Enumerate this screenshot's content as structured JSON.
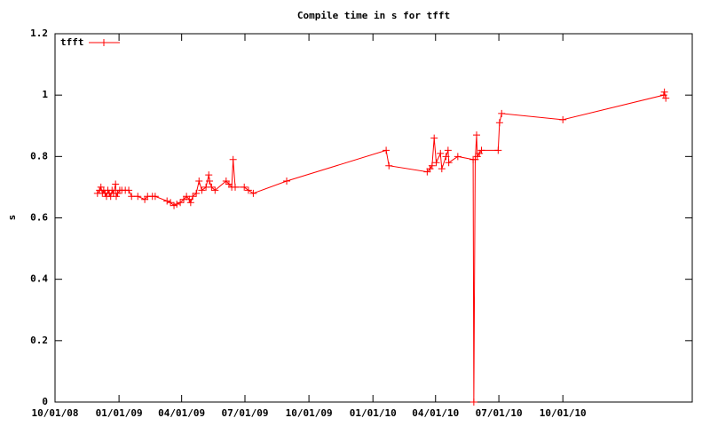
{
  "chart_data": {
    "type": "line",
    "title": "Compile time in s for tfft",
    "y_label": "s",
    "legend_position": "upper-left",
    "x": [
      "2008-12-01",
      "2008-12-04",
      "2008-12-06",
      "2008-12-08",
      "2008-12-10",
      "2008-12-12",
      "2008-12-14",
      "2008-12-16",
      "2008-12-18",
      "2008-12-20",
      "2008-12-22",
      "2008-12-24",
      "2008-12-27",
      "2008-12-28",
      "2008-12-30",
      "2009-01-02",
      "2009-01-05",
      "2009-01-10",
      "2009-01-15",
      "2009-01-19",
      "2009-01-28",
      "2009-02-07",
      "2009-02-11",
      "2009-02-18",
      "2009-02-22",
      "2009-03-11",
      "2009-03-16",
      "2009-03-21",
      "2009-03-25",
      "2009-03-30",
      "2009-04-04",
      "2009-04-08",
      "2009-04-12",
      "2009-04-14",
      "2009-04-17",
      "2009-04-22",
      "2009-04-26",
      "2009-04-30",
      "2009-05-06",
      "2009-05-10",
      "2009-05-11",
      "2009-05-14",
      "2009-05-19",
      "2009-06-04",
      "2009-06-08",
      "2009-06-12",
      "2009-06-14",
      "2009-06-17",
      "2009-06-30",
      "2009-07-06",
      "2009-07-13",
      "2009-08-30",
      "2010-01-20",
      "2010-01-24",
      "2010-03-20",
      "2010-03-24",
      "2010-03-27",
      "2010-03-30",
      "2010-04-02",
      "2010-04-08",
      "2010-04-10",
      "2010-04-16",
      "2010-04-19",
      "2010-04-20",
      "2010-05-03",
      "2010-05-25",
      "2010-05-26",
      "2010-05-28",
      "2010-05-30",
      "2010-05-31",
      "2010-06-03",
      "2010-06-06",
      "2010-06-30",
      "2010-07-02",
      "2010-07-05",
      "2010-10-01",
      "2011-02-23",
      "2011-02-24",
      "2011-02-26"
    ],
    "series": [
      {
        "name": "tfft",
        "color": "#ff0000",
        "values": [
          0.68,
          0.69,
          0.7,
          0.68,
          0.69,
          0.68,
          0.67,
          0.69,
          0.68,
          0.67,
          0.69,
          0.68,
          0.71,
          0.67,
          0.68,
          0.69,
          0.69,
          0.69,
          0.69,
          0.67,
          0.67,
          0.66,
          0.67,
          0.67,
          0.67,
          0.655,
          0.65,
          0.64,
          0.645,
          0.65,
          0.66,
          0.67,
          0.66,
          0.65,
          0.67,
          0.68,
          0.72,
          0.69,
          0.7,
          0.74,
          0.72,
          0.7,
          0.69,
          0.72,
          0.71,
          0.7,
          0.79,
          0.7,
          0.7,
          0.69,
          0.68,
          0.72,
          0.82,
          0.77,
          0.75,
          0.76,
          0.77,
          0.86,
          0.78,
          0.81,
          0.76,
          0.8,
          0.82,
          0.78,
          0.8,
          0.79,
          0,
          0.79,
          0.87,
          0.8,
          0.81,
          0.82,
          0.82,
          0.91,
          0.94,
          0.92,
          1.0,
          1.01,
          0.99
        ]
      }
    ],
    "xlim": [
      "2008-10-01",
      "2011-04-05"
    ],
    "xticks": [
      {
        "value": "2008-10-01",
        "label": "10/01/08"
      },
      {
        "value": "2009-01-01",
        "label": "01/01/09"
      },
      {
        "value": "2009-04-01",
        "label": "04/01/09"
      },
      {
        "value": "2009-07-01",
        "label": "07/01/09"
      },
      {
        "value": "2009-10-01",
        "label": "10/01/09"
      },
      {
        "value": "2010-01-01",
        "label": "01/01/10"
      },
      {
        "value": "2010-04-01",
        "label": "04/01/10"
      },
      {
        "value": "2010-07-01",
        "label": "07/01/10"
      },
      {
        "value": "2010-10-01",
        "label": "10/01/10"
      }
    ],
    "ylim": [
      0,
      1.2
    ],
    "yticks": [
      0,
      0.2,
      0.4,
      0.6,
      0.8,
      1,
      1.2
    ],
    "grid": false
  }
}
